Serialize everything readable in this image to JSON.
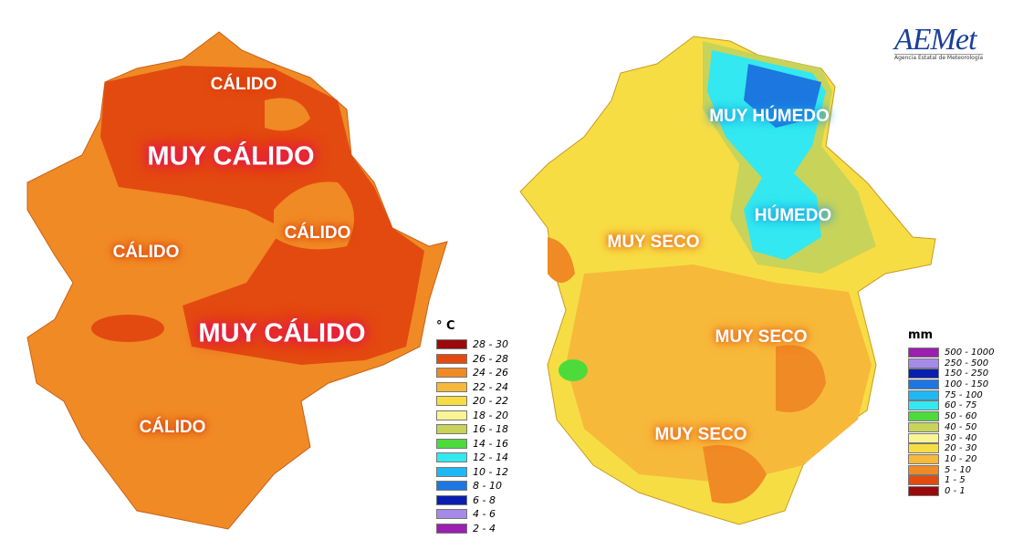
{
  "logo": {
    "name": "AEMet",
    "subtitle": "Agencia Estatal de Meteorología"
  },
  "temperature_map": {
    "labels": [
      "CÁLIDO",
      "MUY CÁLIDO",
      "CÁLIDO",
      "CÁLIDO",
      "MUY CÁLIDO",
      "CÁLIDO"
    ],
    "legend": {
      "title": "° C",
      "items": [
        {
          "label": "28 - 30",
          "color": "#9b0a0a"
        },
        {
          "label": "26 - 28",
          "color": "#e34a10"
        },
        {
          "label": "24 - 26",
          "color": "#f08a24"
        },
        {
          "label": "22 - 24",
          "color": "#f7b93a"
        },
        {
          "label": "20 - 22",
          "color": "#f7dd44"
        },
        {
          "label": "18 - 20",
          "color": "#f9f596"
        },
        {
          "label": "16 - 18",
          "color": "#c8d35a"
        },
        {
          "label": "14 - 16",
          "color": "#4ddb3c"
        },
        {
          "label": "12 - 14",
          "color": "#33e8f0"
        },
        {
          "label": "10 - 12",
          "color": "#1fb8f5"
        },
        {
          "label": "8 - 10",
          "color": "#1d77e0"
        },
        {
          "label": "6 - 8",
          "color": "#0a1fb0"
        },
        {
          "label": "4 - 6",
          "color": "#a58ae8"
        },
        {
          "label": "2 - 4",
          "color": "#9b1fb0"
        }
      ]
    }
  },
  "precipitation_map": {
    "labels": [
      "MUY HÚMEDO",
      "HÚMEDO",
      "MUY SECO",
      "MUY SECO",
      "MUY SECO"
    ],
    "legend": {
      "title": "mm",
      "items": [
        {
          "label": "500 - 1000",
          "color": "#9b1fb0"
        },
        {
          "label": "250 - 500",
          "color": "#a58ae8"
        },
        {
          "label": "150 - 250",
          "color": "#0a1fb0"
        },
        {
          "label": "100 - 150",
          "color": "#1d77e0"
        },
        {
          "label": "75 - 100",
          "color": "#1fb8f5"
        },
        {
          "label": "60 - 75",
          "color": "#33e8f0"
        },
        {
          "label": "50 - 60",
          "color": "#4ddb3c"
        },
        {
          "label": "40 - 50",
          "color": "#c8d35a"
        },
        {
          "label": "30 - 40",
          "color": "#f9f596"
        },
        {
          "label": "20 - 30",
          "color": "#f7dd44"
        },
        {
          "label": "10 - 20",
          "color": "#f7b93a"
        },
        {
          "label": "5 - 10",
          "color": "#f08a24"
        },
        {
          "label": "1 - 5",
          "color": "#e34a10"
        },
        {
          "label": "0 - 1",
          "color": "#9b0a0a"
        }
      ]
    }
  }
}
